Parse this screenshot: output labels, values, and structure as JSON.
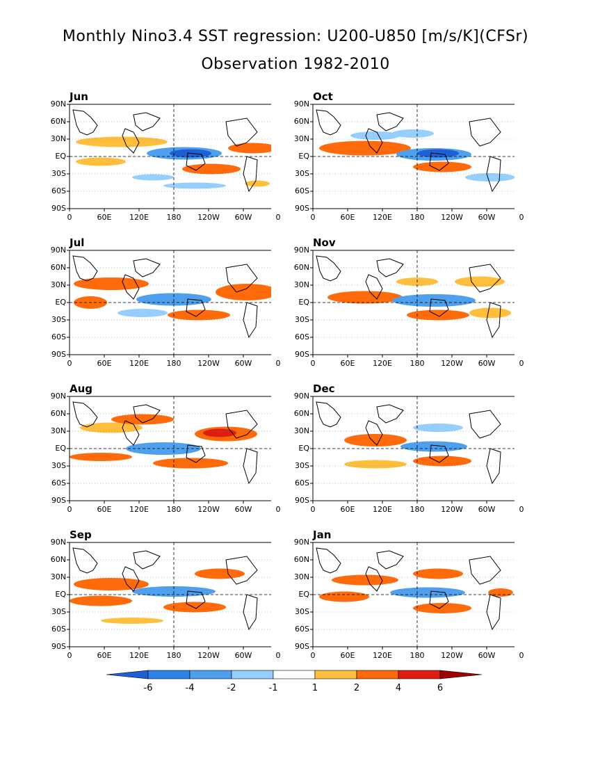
{
  "title": "Monthly Nino3.4 SST regression: U200-U850 [m/s/K](CFSr)",
  "subtitle": "Observation 1982-2010",
  "y_tick_labels": [
    "90N",
    "60N",
    "30N",
    "EQ",
    "30S",
    "60S",
    "90S"
  ],
  "x_tick_labels": [
    "0",
    "60E",
    "120E",
    "180",
    "120W",
    "60W",
    "0"
  ],
  "panels": [
    {
      "label": "Jun"
    },
    {
      "label": "Oct"
    },
    {
      "label": "Jul"
    },
    {
      "label": "Nov"
    },
    {
      "label": "Aug"
    },
    {
      "label": "Dec"
    },
    {
      "label": "Sep"
    },
    {
      "label": "Jan"
    }
  ],
  "colorbar": {
    "ticks": [
      "-6",
      "-4",
      "-2",
      "-1",
      "1",
      "2",
      "4",
      "6"
    ],
    "levels": [
      -6,
      -4,
      -2,
      -1,
      1,
      2,
      4,
      6
    ],
    "colors": [
      "#1e5fd6",
      "#2f82e8",
      "#4ea0ee",
      "#96ceff",
      "#ffffff",
      "#ffbf3c",
      "#ff6a0a",
      "#de1d12",
      "#a10000"
    ]
  },
  "colors": {
    "neg_strong": "#1e5fd6",
    "neg_mid": "#4ea0ee",
    "neg_weak": "#96ceff",
    "pos_weak": "#ffbf3c",
    "pos_mid": "#ff6a0a",
    "pos_strong": "#de1d12"
  }
}
